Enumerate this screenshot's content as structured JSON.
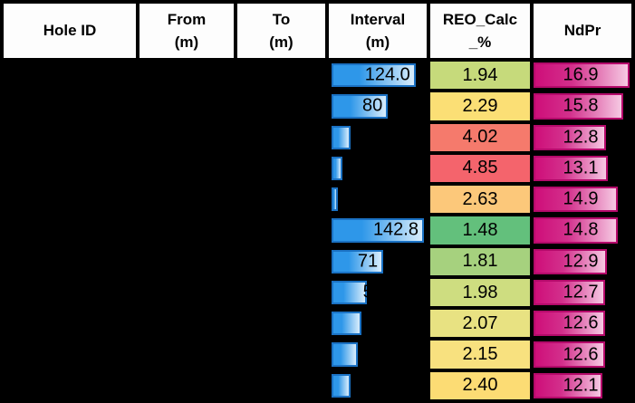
{
  "colors": {
    "background": "#000000",
    "header_bg": "#FDFDFD",
    "text": "#000000",
    "interval_bar_fill": "#2E97E9",
    "interval_bar_fade": "#D9EDFC",
    "interval_bar_border": "#1B72C4",
    "ndpr_bar_fill": "#CE0E79",
    "ndpr_bar_fade": "#F6C9E3",
    "ndpr_bar_border": "#B50A6B"
  },
  "header": {
    "cells": [
      {
        "line1": "Hole ID",
        "line2": ""
      },
      {
        "line1": "From",
        "line2": "(m)"
      },
      {
        "line1": "To",
        "line2": "(m)"
      },
      {
        "line1": "Interval",
        "line2": "(m)"
      },
      {
        "line1": "REO_Calc",
        "line2": "_%"
      },
      {
        "line1": "NdPr",
        "line2": ""
      }
    ]
  },
  "chart_data": {
    "type": "table",
    "columns": [
      "Hole ID",
      "From (m)",
      "To (m)",
      "Interval (m)",
      "REO_Calc_%",
      "NdPr"
    ],
    "notes": "Hole ID, From and To cell values are blacked out (black text on black background); Interval column shows blue data bars with labels visible only where they overlap the bar; NdPr column shows magenta data bars with centered labels",
    "rows": [
      {
        "hole_id": "",
        "from": "",
        "to": "",
        "interval_label": "124.0",
        "interval_bar_pct": 0.91,
        "label_offset": 4,
        "reo": "1.94",
        "reo_color": "#C6DA7B",
        "ndpr": "16.9",
        "ndpr_bar_pct": 0.98
      },
      {
        "hole_id": "",
        "from": "",
        "to": "",
        "interval_label": "80",
        "interval_bar_pct": 0.61,
        "label_offset": 4,
        "reo": "2.29",
        "reo_color": "#FBDF75",
        "ndpr": "15.8",
        "ndpr_bar_pct": 0.916
      },
      {
        "hole_id": "",
        "from": "",
        "to": "",
        "interval_label": "",
        "interval_bar_pct": 0.21,
        "label_offset": 4,
        "reo": "4.02",
        "reo_color": "#F57A6C",
        "ndpr": "12.8",
        "ndpr_bar_pct": 0.742
      },
      {
        "hole_id": "",
        "from": "",
        "to": "",
        "interval_label": "",
        "interval_bar_pct": 0.12,
        "label_offset": 4,
        "reo": "4.85",
        "reo_color": "#F4646C",
        "ndpr": "13.1",
        "ndpr_bar_pct": 0.76
      },
      {
        "hole_id": "",
        "from": "",
        "to": "",
        "interval_label": "",
        "interval_bar_pct": 0.07,
        "label_offset": 4,
        "reo": "2.63",
        "reo_color": "#FCC87A",
        "ndpr": "14.9",
        "ndpr_bar_pct": 0.864
      },
      {
        "hole_id": "",
        "from": "",
        "to": "",
        "interval_label": "142.8",
        "interval_bar_pct": 1.0,
        "label_offset": 4,
        "reo": "1.48",
        "reo_color": "#63C07C",
        "ndpr": "14.8",
        "ndpr_bar_pct": 0.858
      },
      {
        "hole_id": "",
        "from": "",
        "to": "",
        "interval_label": "71",
        "interval_bar_pct": 0.56,
        "label_offset": 4,
        "reo": "1.81",
        "reo_color": "#A6D17E",
        "ndpr": "12.9",
        "ndpr_bar_pct": 0.748
      },
      {
        "hole_id": "",
        "from": "",
        "to": "",
        "interval_label": "5",
        "interval_bar_pct": 0.38,
        "label_offset": -9,
        "reo": "1.98",
        "reo_color": "#CEDD80",
        "ndpr": "12.7",
        "ndpr_bar_pct": 0.736
      },
      {
        "hole_id": "",
        "from": "",
        "to": "",
        "interval_label": "",
        "interval_bar_pct": 0.32,
        "label_offset": 4,
        "reo": "2.07",
        "reo_color": "#E8E282",
        "ndpr": "12.6",
        "ndpr_bar_pct": 0.731
      },
      {
        "hole_id": "",
        "from": "",
        "to": "",
        "interval_label": "",
        "interval_bar_pct": 0.28,
        "label_offset": 4,
        "reo": "2.15",
        "reo_color": "#F8E17F",
        "ndpr": "12.6",
        "ndpr_bar_pct": 0.731
      },
      {
        "hole_id": "",
        "from": "",
        "to": "",
        "interval_label": "",
        "interval_bar_pct": 0.21,
        "label_offset": 4,
        "reo": "2.40",
        "reo_color": "#FCDC74",
        "ndpr": "12.1",
        "ndpr_bar_pct": 0.702
      }
    ]
  }
}
